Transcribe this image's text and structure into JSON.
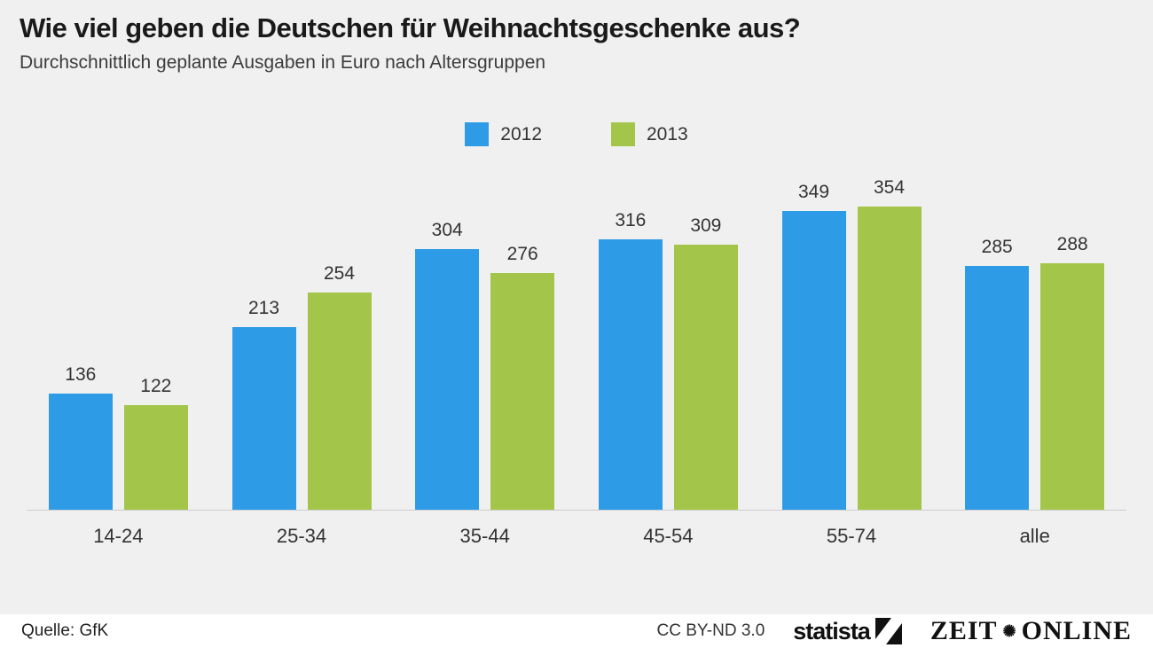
{
  "header": {
    "title": "Wie viel geben die Deutschen für Weihnachtsgeschenke aus?",
    "subtitle": "Durchschnittlich geplante Ausgaben in Euro nach Altersgruppen"
  },
  "chart_data": {
    "type": "bar",
    "title": "Wie viel geben die Deutschen für Weihnachtsgeschenke aus?",
    "subtitle": "Durchschnittlich geplante Ausgaben in Euro nach Altersgruppen",
    "categories": [
      "14-24",
      "25-34",
      "35-44",
      "45-54",
      "55-74",
      "alle"
    ],
    "series": [
      {
        "name": "2012",
        "color": "#2e9be6",
        "values": [
          136,
          213,
          304,
          316,
          349,
          285
        ]
      },
      {
        "name": "2013",
        "color": "#a3c64a",
        "values": [
          122,
          254,
          276,
          309,
          354,
          288
        ]
      }
    ],
    "xlabel": "Altersgruppen",
    "ylabel": "Euro",
    "ylim": [
      0,
      380
    ],
    "grid": false,
    "legend_position": "top-center",
    "value_labels": true
  },
  "footer": {
    "source": "Quelle: GfK",
    "license": "CC BY-ND 3.0",
    "statista_label": "statista",
    "zeit_label": "ZEIT",
    "zeit_ornament": "✺",
    "zeit_online_label": "ONLINE"
  }
}
